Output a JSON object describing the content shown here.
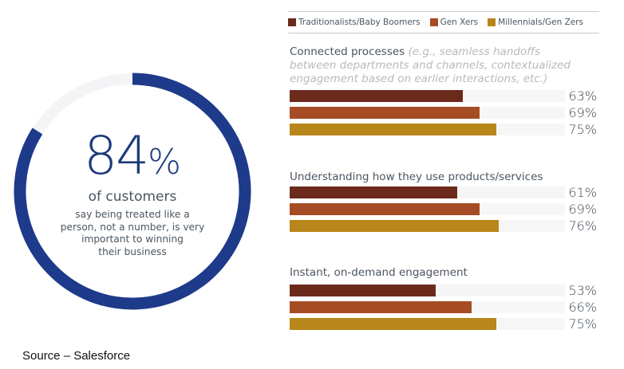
{
  "stat": {
    "value": "84",
    "percent_sign": "%",
    "fraction": 0.84,
    "headline": "of customers",
    "description_lines": [
      "say being treated like a",
      "person, not a number, is very",
      "important to winning",
      "their business"
    ],
    "ring_color": "#1e3a8a",
    "track_color": "#f4f4f6"
  },
  "source": "Source – Salesforce",
  "chart_data": {
    "type": "bar",
    "orientation": "horizontal",
    "unit": "%",
    "xlim": [
      0,
      100
    ],
    "legend": {
      "placement": "top"
    },
    "series": [
      {
        "name": "Traditionalists/Baby Boomers",
        "color": "#6b2a1c"
      },
      {
        "name": "Gen Xers",
        "color": "#a64c24"
      },
      {
        "name": "Millennials/Gen Zers",
        "color": "#b8861b"
      }
    ],
    "categories": [
      {
        "title": "Connected processes",
        "note_lines": [
          "(e.g., seamless handoffs",
          "between departments and channels, contextualized",
          "engagement based on earlier interactions, etc.)"
        ],
        "values": [
          63,
          69,
          75
        ],
        "labels": [
          "63%",
          "69%",
          "75%"
        ]
      },
      {
        "title": "Understanding how they use products/services",
        "note_lines": [],
        "values": [
          61,
          69,
          76
        ],
        "labels": [
          "61%",
          "69%",
          "76%"
        ]
      },
      {
        "title": "Instant, on-demand engagement",
        "note_lines": [],
        "values": [
          53,
          66,
          75
        ],
        "labels": [
          "53%",
          "66%",
          "75%"
        ]
      }
    ]
  }
}
